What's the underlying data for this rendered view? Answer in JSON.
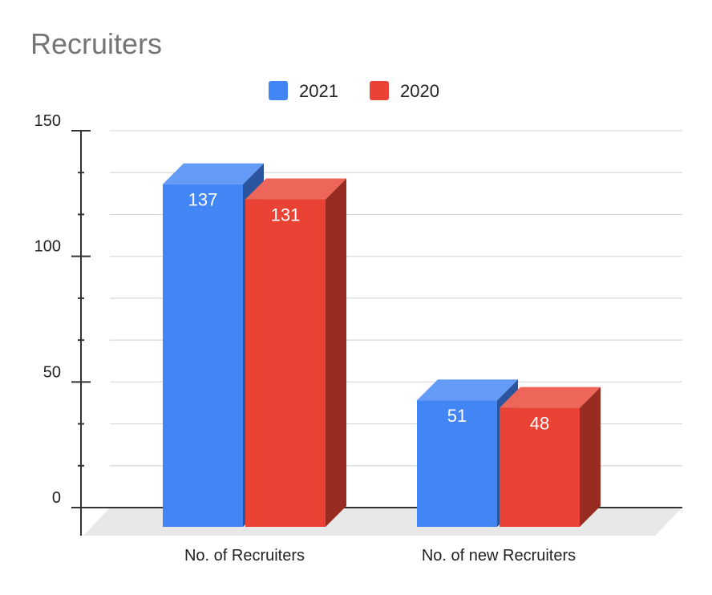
{
  "chart_data": {
    "type": "bar",
    "title": "Recruiters",
    "categories": [
      "No. of Recruiters",
      "No. of new Recruiters"
    ],
    "series": [
      {
        "name": "2021",
        "values": [
          137,
          51
        ],
        "color": "#4285f4"
      },
      {
        "name": "2020",
        "values": [
          131,
          48
        ],
        "color": "#ea4335"
      }
    ],
    "ylim": [
      0,
      150
    ],
    "yticks": [
      0,
      50,
      100,
      150
    ],
    "grid": true,
    "legend_position": "top",
    "style": "3d"
  }
}
